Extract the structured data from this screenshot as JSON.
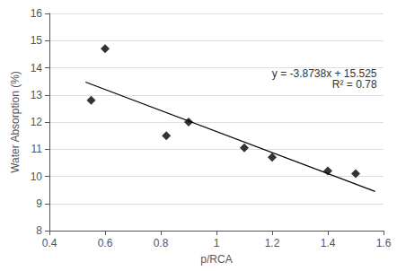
{
  "chart_data": {
    "type": "scatter",
    "xlabel": "p/RCA",
    "ylabel": "Water Absorption (%)",
    "xlim": [
      0.4,
      1.6
    ],
    "ylim": [
      8,
      16
    ],
    "xticks": [
      0.4,
      0.6,
      0.8,
      1,
      1.2,
      1.4,
      1.6
    ],
    "yticks": [
      8,
      9,
      10,
      11,
      12,
      13,
      14,
      15,
      16
    ],
    "grid": true,
    "annotation": "y = -3.8738x + 15.525\nR² = 0.78",
    "series": [
      {
        "type": "scatter",
        "x": [
          0.55,
          0.6,
          0.82,
          0.9,
          1.1,
          1.2,
          1.4,
          1.5
        ],
        "values": [
          12.8,
          14.7,
          11.5,
          12.0,
          11.05,
          10.7,
          10.2,
          10.1
        ],
        "color": "black",
        "marker": "diamond"
      },
      {
        "type": "line",
        "x": [
          0.53,
          1.57
        ],
        "values": [
          13.471886,
          9.443134
        ],
        "color": "black",
        "line_style": "solid"
      }
    ]
  }
}
